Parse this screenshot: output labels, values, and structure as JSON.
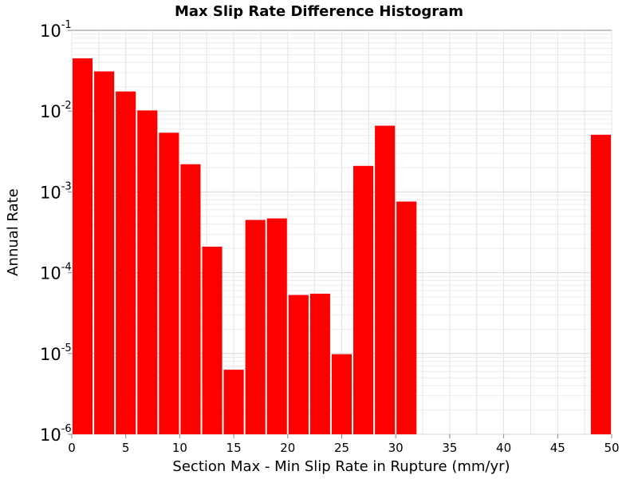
{
  "chart_data": {
    "type": "bar",
    "title": "Max Slip Rate Difference Histogram",
    "xlabel": "Section Max - Min Slip Rate in Rupture (mm/yr)",
    "ylabel": "Annual Rate",
    "xlim": [
      0,
      50
    ],
    "ylim": [
      1e-06,
      0.1
    ],
    "yscale": "log",
    "grid": true,
    "bar_color": "#ff0000",
    "bin_width": 2,
    "x_ticks": [
      "0",
      "5",
      "10",
      "15",
      "20",
      "25",
      "30",
      "35",
      "40",
      "45",
      "50"
    ],
    "y_ticks": [
      {
        "base": "10",
        "exp": "-1"
      },
      {
        "base": "10",
        "exp": "-2"
      },
      {
        "base": "10",
        "exp": "-3"
      },
      {
        "base": "10",
        "exp": "-4"
      },
      {
        "base": "10",
        "exp": "-5"
      },
      {
        "base": "10",
        "exp": "-6"
      }
    ],
    "bars": [
      {
        "x": 1,
        "value": 0.045
      },
      {
        "x": 3,
        "value": 0.031
      },
      {
        "x": 5,
        "value": 0.0175
      },
      {
        "x": 7,
        "value": 0.0102
      },
      {
        "x": 9,
        "value": 0.0054
      },
      {
        "x": 11,
        "value": 0.0022
      },
      {
        "x": 13,
        "value": 0.00021
      },
      {
        "x": 15,
        "value": 6.3e-06
      },
      {
        "x": 17,
        "value": 0.00045
      },
      {
        "x": 19,
        "value": 0.00047
      },
      {
        "x": 21,
        "value": 5.3e-05
      },
      {
        "x": 23,
        "value": 5.5e-05
      },
      {
        "x": 25,
        "value": 9.8e-06
      },
      {
        "x": 27,
        "value": 0.0021
      },
      {
        "x": 29,
        "value": 0.0066
      },
      {
        "x": 31,
        "value": 0.00076
      },
      {
        "x": 49,
        "value": 0.0051
      }
    ]
  }
}
